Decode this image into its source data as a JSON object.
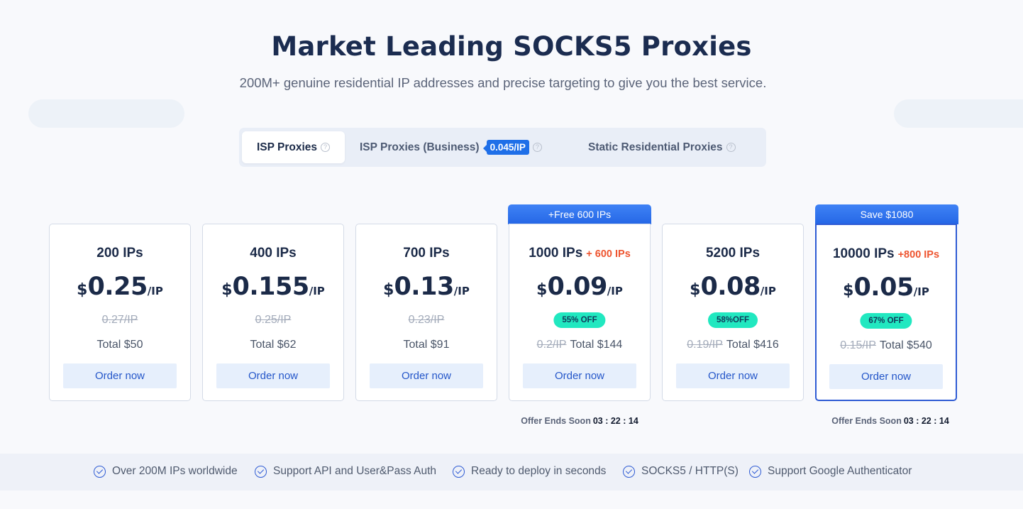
{
  "header": {
    "title": "Market Leading SOCKS5 Proxies",
    "subtitle": "200M+ genuine residential IP addresses and precise targeting to give you the best service."
  },
  "tabs": [
    {
      "label": "ISP Proxies",
      "active": true
    },
    {
      "label": "ISP Proxies (Business)",
      "badge": "0.045/IP",
      "active": false
    },
    {
      "label": "Static Residential Proxies",
      "active": false
    }
  ],
  "help_icon_glyph": "?",
  "currency": "$",
  "unit": "/IP",
  "order_label": "Order now",
  "total_prefix": "Total",
  "plans": [
    {
      "ips": "200 IPs",
      "price": "0.25",
      "old_price": "0.27/IP",
      "total": "Total $50"
    },
    {
      "ips": "400 IPs",
      "price": "0.155",
      "old_price": "0.25/IP",
      "total": "Total $62"
    },
    {
      "ips": "700 IPs",
      "price": "0.13",
      "old_price": "0.23/IP",
      "total": "Total $91"
    },
    {
      "ips": "1000 IPs",
      "bonus": "+ 600 IPs",
      "ribbon": "+Free 600 IPs",
      "price": "0.09",
      "discount": "55% OFF",
      "old_price": "0.2/IP",
      "total": "Total $144",
      "offer": "Offer Ends Soon",
      "timer": "03 : 22 : 14"
    },
    {
      "ips": "5200 IPs",
      "price": "0.08",
      "discount": "58%OFF",
      "old_price": "0.19/IP",
      "total": "Total $416"
    },
    {
      "ips": "10000 IPs",
      "bonus": "+800 IPs",
      "ribbon": "Save $1080",
      "price": "0.05",
      "discount": "67% OFF",
      "old_price": "0.15/IP",
      "total": "Total $540",
      "offer": "Offer Ends Soon",
      "timer": "03 : 22 : 14"
    }
  ],
  "features": [
    "Over 200M IPs worldwide",
    "Support API and User&Pass Auth",
    "Ready to deploy in seconds",
    "SOCKS5 / HTTP(S)",
    "Support Google Authenticator"
  ],
  "colors": {
    "accent": "#2567e6",
    "bonus": "#ee5530",
    "discount": "#21e8c0",
    "order_button_bg": "#e6effc"
  }
}
